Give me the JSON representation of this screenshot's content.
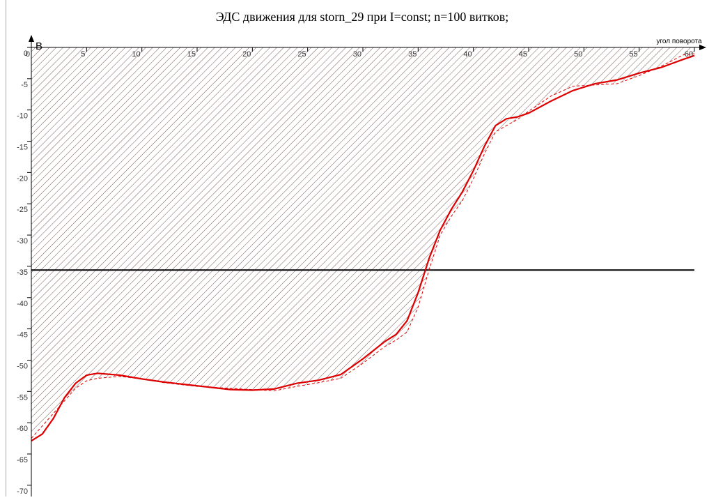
{
  "chart_data": {
    "type": "line",
    "title": "ЭДС движения  для storn_29 при I=const; n=100 витков;",
    "x_label": "угол поворота",
    "y_label": "В",
    "x": [
      0,
      1,
      2,
      3,
      4,
      5,
      6,
      8,
      10,
      12,
      15,
      18,
      20,
      22,
      24,
      26,
      28,
      30,
      32,
      33,
      34,
      35,
      36,
      37,
      38,
      39,
      40,
      41,
      42,
      43,
      44,
      45,
      47,
      49,
      51,
      53,
      55,
      57,
      59,
      60
    ],
    "series": [
      {
        "name": "solid",
        "color": "#dd0000",
        "dashed": false,
        "hatched": false,
        "values": [
          -62.9,
          -61.8,
          -59.3,
          -56,
          -53.7,
          -52.4,
          -52.1,
          -52.4,
          -53,
          -53.5,
          -54.1,
          -54.7,
          -54.8,
          -54.6,
          -53.7,
          -53.2,
          -52.3,
          -49.8,
          -47,
          -45.9,
          -43.7,
          -39.2,
          -33.7,
          -29.2,
          -25.9,
          -23.1,
          -19.7,
          -15.8,
          -12.5,
          -11.4,
          -11.1,
          -10.5,
          -8.6,
          -6.9,
          -5.8,
          -5.2,
          -4.1,
          -3.2,
          -1.9,
          -1.3
        ]
      },
      {
        "name": "dashed",
        "color": "#dd0000",
        "dashed": true,
        "hatched": true,
        "values": [
          -62.5,
          -60.5,
          -58.5,
          -56.5,
          -54.5,
          -53.3,
          -52.9,
          -52.6,
          -53,
          -53.6,
          -54.2,
          -54.5,
          -54.7,
          -54.9,
          -54.2,
          -53.6,
          -52.9,
          -50.5,
          -47.8,
          -46.8,
          -45.5,
          -41.5,
          -35.5,
          -30,
          -27,
          -24.5,
          -21,
          -17,
          -13.5,
          -12.5,
          -11.5,
          -10.2,
          -7.8,
          -6.2,
          -6,
          -5.8,
          -4.5,
          -3,
          -1.2,
          -1
        ]
      }
    ],
    "reference_line": {
      "value": -35.6,
      "color": "#000000"
    },
    "xlim": [
      0,
      60
    ],
    "ylim": [
      -71.8,
      0
    ],
    "xticks": [
      0,
      5,
      10,
      15,
      20,
      25,
      30,
      35,
      40,
      45,
      50,
      55,
      60
    ],
    "yticks": [
      0,
      -5,
      -10,
      -15,
      -20,
      -25,
      -30,
      -35,
      -40,
      -45,
      -50,
      -55,
      -60,
      -65,
      -70
    ]
  }
}
